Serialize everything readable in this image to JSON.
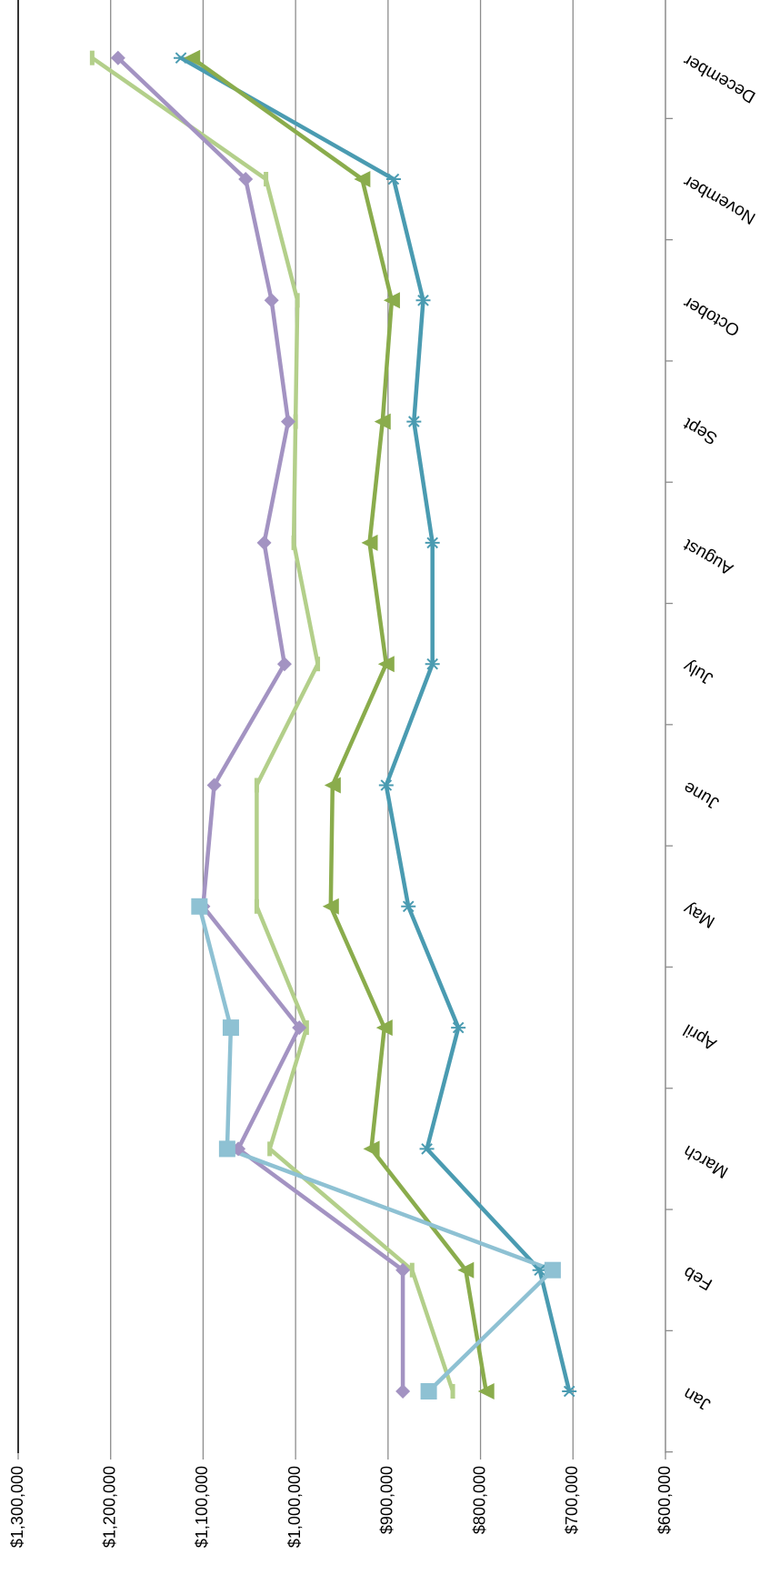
{
  "chart_data": {
    "type": "line",
    "title": "",
    "xlabel": "",
    "ylabel": "",
    "categories": [
      "Jan",
      "Feb",
      "March",
      "April",
      "May",
      "June",
      "July",
      "August",
      "Sept",
      "October",
      "November",
      "December"
    ],
    "ylim": [
      600000,
      1300000
    ],
    "yticks": [
      600000,
      700000,
      800000,
      900000,
      1000000,
      1100000,
      1200000,
      1300000
    ],
    "ytick_labels": [
      "$600,000",
      "$700,000",
      "$800,000",
      "$900,000",
      "$1,000,000",
      "$1,100,000",
      "$1,200,000",
      "$1,300,000"
    ],
    "grid": true,
    "legend": "none",
    "orientation": "rotated 180 degrees",
    "series": [
      {
        "color": "#4a9bb1",
        "marker": "star",
        "values": [
          704000,
          736000,
          858000,
          824000,
          878000,
          902000,
          852000,
          852000,
          872000,
          862000,
          894000,
          1124000
        ]
      },
      {
        "color": "#8aac4c",
        "marker": "triangle",
        "values": [
          794000,
          816000,
          918000,
          904000,
          962000,
          960000,
          902000,
          920000,
          906000,
          896000,
          928000,
          1112000
        ]
      },
      {
        "color": "#b3cf8a",
        "marker": "dash",
        "values": [
          830000,
          874000,
          1028000,
          988000,
          1042000,
          1042000,
          976000,
          1002000,
          1000000,
          998000,
          1032000,
          1220000
        ]
      },
      {
        "color": "#a393c2",
        "marker": "diamond",
        "values": [
          884000,
          884000,
          1062000,
          996000,
          1100000,
          1088000,
          1012000,
          1034000,
          1008000,
          1026000,
          1054000,
          1192000
        ]
      },
      {
        "color": "#8ec1d3",
        "marker": "square",
        "values": [
          856000,
          722000,
          1074000,
          1070000,
          1104000,
          null,
          null,
          null,
          null,
          null,
          null,
          null
        ]
      }
    ]
  }
}
